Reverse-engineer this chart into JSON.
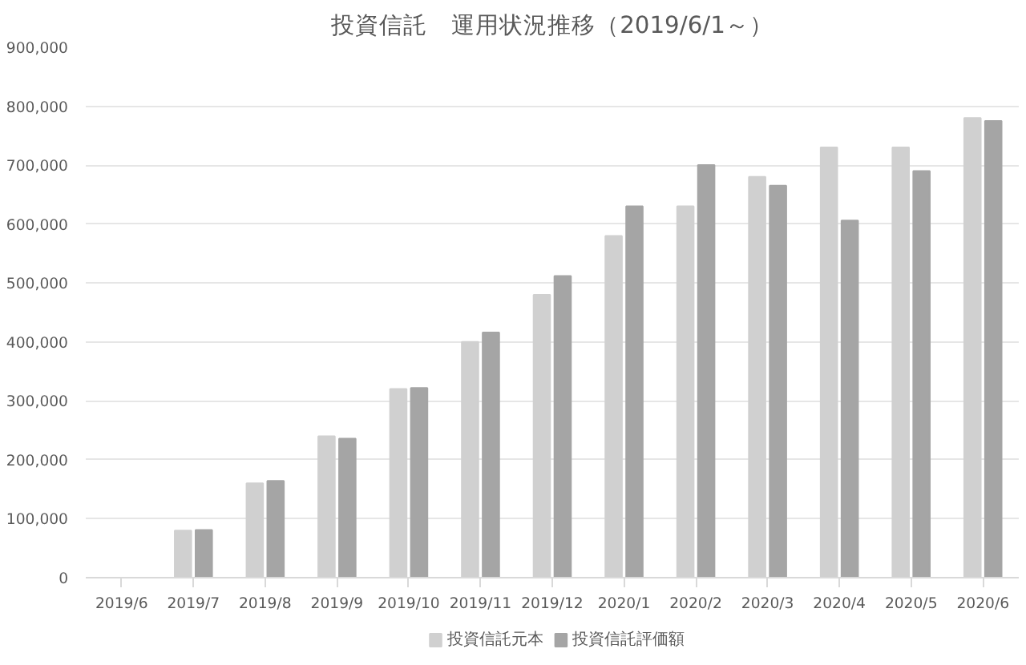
{
  "chart_data": {
    "type": "bar",
    "title": "投資信託　運用状況推移（2019/6/1～）",
    "categories": [
      "2019/6",
      "2019/7",
      "2019/8",
      "2019/9",
      "2019/10",
      "2019/11",
      "2019/12",
      "2020/1",
      "2020/2",
      "2020/3",
      "2020/4",
      "2020/5",
      "2020/6"
    ],
    "series": [
      {
        "name": "投資信託元本",
        "color": "#d0d0d0",
        "values": [
          0,
          80000,
          160000,
          240000,
          320000,
          400000,
          480000,
          580000,
          630000,
          680000,
          730000,
          730000,
          780000
        ]
      },
      {
        "name": "投資信託評価額",
        "color": "#a5a5a5",
        "values": [
          0,
          81000,
          164000,
          236000,
          322000,
          416000,
          512000,
          630000,
          700000,
          665000,
          606000,
          690000,
          775000
        ]
      }
    ],
    "ylim": [
      0,
      900000
    ],
    "yticks": [
      {
        "value": 0,
        "label": "0"
      },
      {
        "value": 100000,
        "label": "100,000"
      },
      {
        "value": 200000,
        "label": "200,000"
      },
      {
        "value": 300000,
        "label": "300,000"
      },
      {
        "value": 400000,
        "label": "400,000"
      },
      {
        "value": 500000,
        "label": "500,000"
      },
      {
        "value": 600000,
        "label": "600,000"
      },
      {
        "value": 700000,
        "label": "700,000"
      },
      {
        "value": 800000,
        "label": "800,000"
      },
      {
        "value": 900000,
        "label": "900,000"
      }
    ],
    "grid": "y",
    "legend": "bottom"
  }
}
